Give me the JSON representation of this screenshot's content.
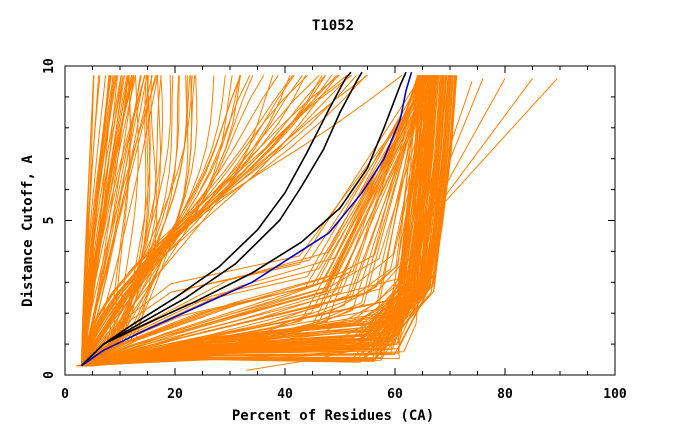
{
  "chart_data": {
    "type": "line",
    "title": "T1052",
    "xlabel": "Percent of Residues (CA)",
    "ylabel": "Distance Cutoff, A",
    "xlim": [
      0,
      100
    ],
    "ylim": [
      0,
      10
    ],
    "x_ticks": [
      "0",
      "20",
      "40",
      "60",
      "80",
      "100"
    ],
    "y_ticks": [
      "0",
      "5",
      "10"
    ],
    "grid": false,
    "legend": "none",
    "colors": {
      "bundle": "#ff8000",
      "highlight_black": "#000000",
      "highlight_blue": "#0000cc",
      "axis": "#000000"
    },
    "series": [
      {
        "color": "#000000",
        "x": [
          3,
          7,
          12,
          20,
          28,
          35,
          40,
          44,
          48,
          51,
          52
        ],
        "y": [
          0.3,
          1.0,
          1.6,
          2.5,
          3.5,
          4.7,
          5.9,
          7.2,
          8.6,
          9.6,
          9.8
        ]
      },
      {
        "color": "#000000",
        "x": [
          3,
          7,
          13,
          22,
          31,
          39,
          43,
          47,
          50,
          53,
          54
        ],
        "y": [
          0.3,
          1.0,
          1.6,
          2.5,
          3.6,
          5.0,
          6.1,
          7.3,
          8.5,
          9.5,
          9.8
        ]
      },
      {
        "color": "#000000",
        "x": [
          3,
          7,
          14,
          24,
          34,
          43,
          50,
          55,
          58,
          61,
          62
        ],
        "y": [
          0.3,
          1.0,
          1.6,
          2.4,
          3.3,
          4.3,
          5.4,
          6.7,
          8.0,
          9.4,
          9.8
        ]
      },
      {
        "color": "#0000cc",
        "x": [
          3,
          7,
          14,
          24,
          34,
          41,
          48,
          54,
          58,
          61,
          62,
          63
        ],
        "y": [
          0.3,
          0.8,
          1.4,
          2.2,
          3.0,
          3.8,
          4.6,
          5.9,
          7.0,
          8.3,
          9.2,
          9.8
        ]
      }
    ]
  }
}
